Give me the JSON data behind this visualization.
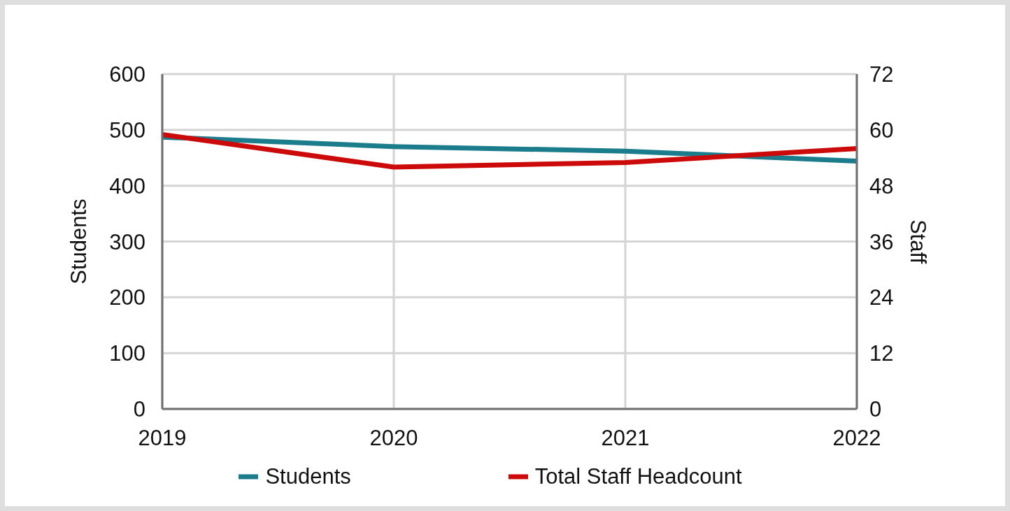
{
  "chart_data": {
    "type": "line",
    "categories": [
      "2019",
      "2020",
      "2021",
      "2022"
    ],
    "series": [
      {
        "name": "Students",
        "color": "#1b7d8c",
        "values": [
          487,
          470,
          462,
          444
        ]
      },
      {
        "name": "Total Staff Headcount",
        "color": "#cc0a0a",
        "values": [
          59,
          52,
          53,
          56
        ],
        "axis": "y2"
      }
    ],
    "ylabel": "Students",
    "y2label": "Staff",
    "ylim": [
      0,
      600
    ],
    "yticks": [
      0,
      100,
      200,
      300,
      400,
      500,
      600
    ],
    "y2lim": [
      0,
      72
    ],
    "y2ticks": [
      0,
      12,
      24,
      36,
      48,
      60,
      72
    ],
    "grid": true,
    "legend": "bottom",
    "marker": "none",
    "line_style": "solid"
  }
}
